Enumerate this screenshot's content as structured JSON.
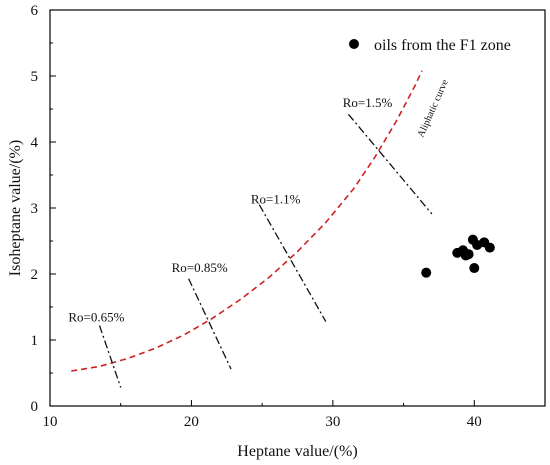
{
  "chart_data": {
    "type": "scatter",
    "xlabel": "Heptane value/(%)",
    "ylabel": "Isoheptane value/(%)",
    "xlim": [
      10,
      45
    ],
    "ylim": [
      0,
      6
    ],
    "x_ticks": [
      10,
      20,
      30,
      40
    ],
    "y_ticks": [
      0,
      1,
      2,
      3,
      4,
      5,
      6
    ],
    "grid": false,
    "legend": {
      "position": "top-right",
      "entries": [
        "oils from the F1 zone"
      ]
    },
    "series": [
      {
        "name": "oils from the F1 zone",
        "color": "#000000",
        "points": [
          {
            "x": 36.6,
            "y": 2.02
          },
          {
            "x": 38.8,
            "y": 2.32
          },
          {
            "x": 39.2,
            "y": 2.36
          },
          {
            "x": 39.4,
            "y": 2.28
          },
          {
            "x": 39.6,
            "y": 2.3
          },
          {
            "x": 39.9,
            "y": 2.52
          },
          {
            "x": 40.0,
            "y": 2.09
          },
          {
            "x": 40.2,
            "y": 2.44
          },
          {
            "x": 40.7,
            "y": 2.48
          },
          {
            "x": 41.1,
            "y": 2.4
          }
        ]
      }
    ],
    "aliphatic_curve": {
      "label": "Aliphatic curve",
      "color": "#cc2222",
      "points": [
        {
          "x": 11.5,
          "y": 0.53
        },
        {
          "x": 13.5,
          "y": 0.6
        },
        {
          "x": 15.5,
          "y": 0.72
        },
        {
          "x": 17.5,
          "y": 0.88
        },
        {
          "x": 19.5,
          "y": 1.08
        },
        {
          "x": 21.5,
          "y": 1.33
        },
        {
          "x": 23.5,
          "y": 1.62
        },
        {
          "x": 25.5,
          "y": 1.95
        },
        {
          "x": 27.5,
          "y": 2.34
        },
        {
          "x": 29.5,
          "y": 2.78
        },
        {
          "x": 31.5,
          "y": 3.3
        },
        {
          "x": 33.0,
          "y": 3.78
        },
        {
          "x": 34.5,
          "y": 4.32
        },
        {
          "x": 35.8,
          "y": 4.85
        },
        {
          "x": 36.3,
          "y": 5.08
        }
      ]
    },
    "ro_lines": [
      {
        "label": "Ro=0.65%",
        "start": {
          "x": 13.5,
          "y": 1.22
        },
        "end": {
          "x": 15.0,
          "y": 0.28
        },
        "label_at": {
          "x": 11.3,
          "y": 1.28
        }
      },
      {
        "label": "Ro=0.85%",
        "start": {
          "x": 19.8,
          "y": 1.93
        },
        "end": {
          "x": 22.8,
          "y": 0.56
        },
        "label_at": {
          "x": 18.6,
          "y": 2.03
        }
      },
      {
        "label": "Ro=1.1%",
        "start": {
          "x": 24.8,
          "y": 3.05
        },
        "end": {
          "x": 29.5,
          "y": 1.28
        },
        "label_at": {
          "x": 24.2,
          "y": 3.07
        }
      },
      {
        "label": "Ro=1.5%",
        "start": {
          "x": 31.1,
          "y": 4.42
        },
        "end": {
          "x": 37.0,
          "y": 2.91
        },
        "label_at": {
          "x": 30.7,
          "y": 4.53
        }
      }
    ]
  }
}
